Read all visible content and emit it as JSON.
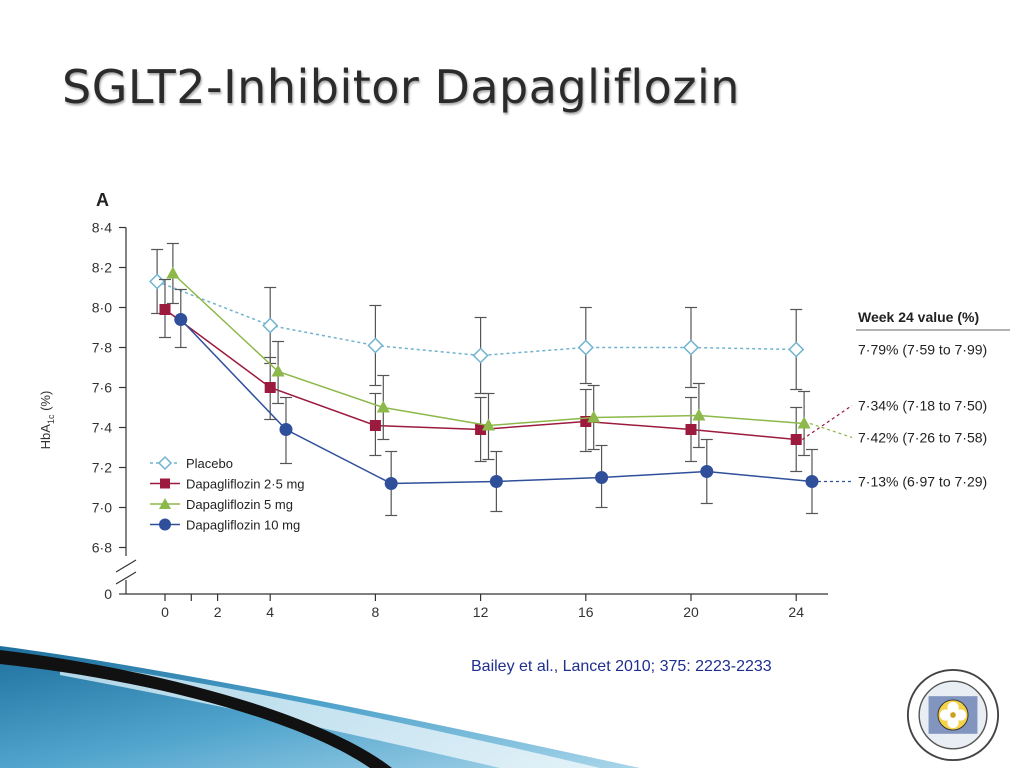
{
  "slide": {
    "title": "SGLT2-Inhibitor Dapagliflozin",
    "citation": "Bailey et al., Lancet 2010; 375: 2223-2233"
  },
  "colors": {
    "placebo": "#6fb3cf",
    "dapa_2_5": "#9c1a3e",
    "dapa_5": "#8db84a",
    "dapa_10": "#2f4f9b",
    "error_bar": "#555555",
    "axis": "#333333",
    "citation": "#1f2f8f"
  },
  "chart_data": {
    "type": "line",
    "panel_label": "A",
    "ylabel": "HbA1c (%)",
    "ylabel_main": "HbA",
    "ylabel_sub": "1c",
    "ylabel_unit": " (%)",
    "xlabel": "",
    "ylim": [
      6.8,
      8.4
    ],
    "y_ticks": [
      8.4,
      8.2,
      8.0,
      7.8,
      7.6,
      7.4,
      7.2,
      7.0,
      6.8
    ],
    "y_tick_labels": [
      "8·4",
      "8·2",
      "8·0",
      "7·8",
      "7·6",
      "7·4",
      "7·2",
      "7·0",
      "6·8"
    ],
    "y_zero_label": "0",
    "x_ticks": [
      0,
      2,
      4,
      8,
      12,
      16,
      20,
      24
    ],
    "x_tick_labels": [
      "0",
      "2",
      "4",
      "8",
      "12",
      "16",
      "20",
      "24"
    ],
    "grid": false,
    "legend_position": "bottom-left",
    "series": [
      {
        "name": "Placebo",
        "marker": "diamond-open",
        "line": "dashed",
        "color": "#6fb3cf",
        "x": [
          -0.3,
          4,
          8,
          12,
          16,
          20,
          24
        ],
        "values": [
          8.13,
          7.91,
          7.81,
          7.76,
          7.8,
          7.8,
          7.79
        ],
        "err_low": [
          7.97,
          7.72,
          7.61,
          7.57,
          7.62,
          7.6,
          7.59
        ],
        "err_high": [
          8.29,
          8.1,
          8.01,
          7.95,
          8.0,
          8.0,
          7.99
        ]
      },
      {
        "name": "Dapagliflozin 2·5 mg",
        "marker": "square",
        "line": "solid",
        "color": "#9c1a3e",
        "x": [
          0,
          4,
          8,
          12,
          16,
          20,
          24
        ],
        "values": [
          7.99,
          7.6,
          7.41,
          7.39,
          7.43,
          7.39,
          7.34
        ],
        "err_low": [
          7.85,
          7.44,
          7.26,
          7.23,
          7.28,
          7.23,
          7.18
        ],
        "err_high": [
          8.14,
          7.75,
          7.57,
          7.55,
          7.59,
          7.55,
          7.5
        ]
      },
      {
        "name": "Dapagliflozin 5 mg",
        "marker": "triangle",
        "line": "solid",
        "color": "#8db84a",
        "x": [
          0.3,
          4.3,
          8.3,
          12.3,
          16.3,
          20.3,
          24.3
        ],
        "values": [
          8.17,
          7.68,
          7.5,
          7.41,
          7.45,
          7.46,
          7.42
        ],
        "err_low": [
          8.02,
          7.52,
          7.34,
          7.24,
          7.29,
          7.3,
          7.26
        ],
        "err_high": [
          8.32,
          7.83,
          7.66,
          7.57,
          7.61,
          7.62,
          7.58
        ]
      },
      {
        "name": "Dapagliflozin 10 mg",
        "marker": "circle",
        "line": "solid",
        "color": "#2f4f9b",
        "x": [
          0.6,
          4.6,
          8.6,
          12.6,
          16.6,
          20.6,
          24.6
        ],
        "values": [
          7.94,
          7.39,
          7.12,
          7.13,
          7.15,
          7.18,
          7.13
        ],
        "err_low": [
          7.8,
          7.22,
          6.96,
          6.98,
          7.0,
          7.02,
          6.97
        ],
        "err_high": [
          8.09,
          7.55,
          7.28,
          7.28,
          7.31,
          7.34,
          7.29
        ]
      }
    ],
    "week24_panel": {
      "header": "Week 24 value (%)",
      "entries": [
        {
          "series": "Placebo",
          "label": "7·79% (7·59 to 7·99)",
          "level": 7.79
        },
        {
          "series": "Dapagliflozin 2·5 mg",
          "label": "7·34% (7·18 to 7·50)",
          "level": 7.51
        },
        {
          "series": "Dapagliflozin 5 mg",
          "label": "7·42% (7·26 to 7·58)",
          "level": 7.35
        },
        {
          "series": "Dapagliflozin 10 mg",
          "label": "7·13% (6·97 to 7·29)",
          "level": 7.13
        }
      ]
    }
  }
}
